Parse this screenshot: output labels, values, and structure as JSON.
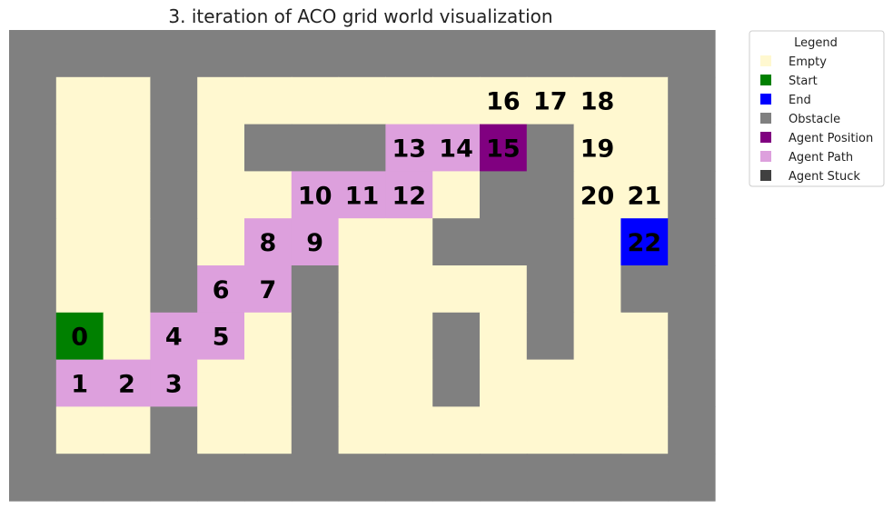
{
  "chart_data": {
    "type": "heatmap",
    "title": "3. iteration of ACO grid world visualization",
    "grid_cols": 15,
    "grid_rows": 10,
    "cell_codes": {
      "E": "Empty",
      "O": "Obstacle",
      "S": "Start",
      "G": "End",
      "A": "Agent Position",
      "P": "Agent Path",
      "X": "Agent Stuck"
    },
    "grid": [
      "OOOOOOOOOOOOOOO",
      "OEEOEEEEEEEEEEO",
      "OEEOEOOOPPAOEEO",
      "OEEOEEPPPEOOEEO",
      "OEEOEPPEEOOOEGO",
      "OEEOPPOEEEEOEOO",
      "OSEPPEOEEOEOEEO",
      "OPPPEEOEEOEEEEO",
      "OEEOEEOEEEEEEEO",
      "OOOOOOOOOOOOOOO"
    ],
    "step_labels": [
      {
        "label": "0",
        "row": 6,
        "col": 1
      },
      {
        "label": "1",
        "row": 7,
        "col": 1
      },
      {
        "label": "2",
        "row": 7,
        "col": 2
      },
      {
        "label": "3",
        "row": 7,
        "col": 3
      },
      {
        "label": "4",
        "row": 6,
        "col": 3
      },
      {
        "label": "5",
        "row": 6,
        "col": 4
      },
      {
        "label": "6",
        "row": 5,
        "col": 4
      },
      {
        "label": "7",
        "row": 5,
        "col": 5
      },
      {
        "label": "8",
        "row": 4,
        "col": 5
      },
      {
        "label": "9",
        "row": 4,
        "col": 6
      },
      {
        "label": "10",
        "row": 3,
        "col": 6
      },
      {
        "label": "11",
        "row": 3,
        "col": 7
      },
      {
        "label": "12",
        "row": 3,
        "col": 8
      },
      {
        "label": "13",
        "row": 2,
        "col": 8
      },
      {
        "label": "14",
        "row": 2,
        "col": 9
      },
      {
        "label": "15",
        "row": 2,
        "col": 10
      },
      {
        "label": "16",
        "row": 1,
        "col": 10
      },
      {
        "label": "17",
        "row": 1,
        "col": 11
      },
      {
        "label": "18",
        "row": 1,
        "col": 12
      },
      {
        "label": "19",
        "row": 2,
        "col": 12
      },
      {
        "label": "20",
        "row": 3,
        "col": 12
      },
      {
        "label": "21",
        "row": 3,
        "col": 13
      },
      {
        "label": "22",
        "row": 4,
        "col": 13
      }
    ],
    "legend": {
      "title": "Legend",
      "placement": "outside-upper-right",
      "entries": [
        {
          "label": "Empty",
          "color": "#fff8d0"
        },
        {
          "label": "Start",
          "color": "#008000"
        },
        {
          "label": "End",
          "color": "#0000ff"
        },
        {
          "label": "Obstacle",
          "color": "#808080"
        },
        {
          "label": "Agent Position",
          "color": "#800080"
        },
        {
          "label": "Agent Path",
          "color": "#dda0dd"
        },
        {
          "label": "Agent Stuck",
          "color": "#404040"
        }
      ]
    },
    "colors": {
      "E": "#fff8d0",
      "O": "#808080",
      "S": "#008000",
      "G": "#0000ff",
      "A": "#800080",
      "P": "#dda0dd",
      "X": "#404040"
    },
    "grid_lines": false,
    "axes_visible": false
  }
}
